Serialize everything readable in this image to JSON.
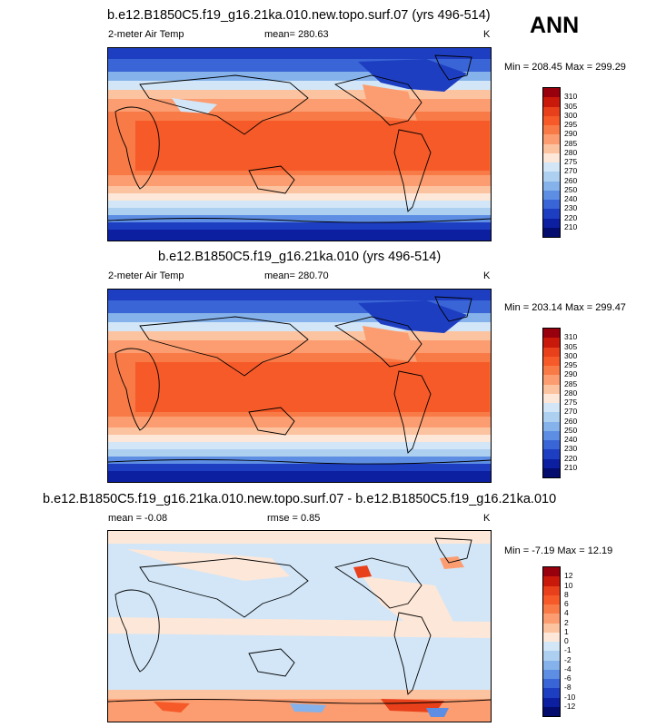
{
  "season": "ANN",
  "panels": [
    {
      "title": "b.e12.B1850C5.f19_g16.21ka.010.new.topo.surf.07 (yrs 496-514)",
      "left_label": "2-meter Air Temp",
      "center_label": "mean= 280.63",
      "units": "K",
      "stats": "Min = 208.45 Max = 299.29",
      "colorbar": {
        "labels": [
          "310",
          "305",
          "300",
          "295",
          "290",
          "285",
          "280",
          "275",
          "270",
          "260",
          "250",
          "240",
          "230",
          "220",
          "210"
        ],
        "colors": [
          "#99000d",
          "#c8190b",
          "#e8401a",
          "#f55a28",
          "#f87a47",
          "#fb9d70",
          "#fcc3a0",
          "#fde7d8",
          "#d2e6f7",
          "#aed0f0",
          "#85b2ea",
          "#5d8ee3",
          "#3a65d6",
          "#1e3ec2",
          "#0b1fa0",
          "#040d6e"
        ]
      }
    },
    {
      "title": "b.e12.B1850C5.f19_g16.21ka.010 (yrs 496-514)",
      "left_label": "2-meter Air Temp",
      "center_label": "mean= 280.70",
      "units": "K",
      "stats": "Min = 203.14 Max = 299.47",
      "colorbar": {
        "labels": [
          "310",
          "305",
          "300",
          "295",
          "290",
          "285",
          "280",
          "275",
          "270",
          "260",
          "250",
          "240",
          "230",
          "220",
          "210"
        ],
        "colors": [
          "#99000d",
          "#c8190b",
          "#e8401a",
          "#f55a28",
          "#f87a47",
          "#fb9d70",
          "#fcc3a0",
          "#fde7d8",
          "#d2e6f7",
          "#aed0f0",
          "#85b2ea",
          "#5d8ee3",
          "#3a65d6",
          "#1e3ec2",
          "#0b1fa0",
          "#040d6e"
        ]
      }
    },
    {
      "title": "b.e12.B1850C5.f19_g16.21ka.010.new.topo.surf.07 - b.e12.B1850C5.f19_g16.21ka.010",
      "left_label": "mean =  -0.08",
      "center_label": "rmse =   0.85",
      "units": "K",
      "stats": "Min =  -7.19 Max =  12.19",
      "colorbar": {
        "labels": [
          "12",
          "10",
          "8",
          "6",
          "4",
          "2",
          "1",
          "0",
          "-1",
          "-2",
          "-4",
          "-6",
          "-8",
          "-10",
          "-12"
        ],
        "colors": [
          "#99000d",
          "#c8190b",
          "#e8401a",
          "#f55a28",
          "#f87a47",
          "#fb9d70",
          "#fcc3a0",
          "#fde7d8",
          "#d2e6f7",
          "#aed0f0",
          "#85b2ea",
          "#5d8ee3",
          "#3a65d6",
          "#1e3ec2",
          "#0b1fa0",
          "#040d6e"
        ]
      }
    }
  ],
  "chart_data": [
    {
      "type": "heatmap",
      "title": "b.e12.B1850C5.f19_g16.21ka.010.new.topo.surf.07 (yrs 496-514)",
      "variable": "2-meter Air Temp",
      "units": "K",
      "mean": 280.63,
      "min": 208.45,
      "max": 299.29,
      "levels": [
        210,
        220,
        230,
        240,
        250,
        260,
        270,
        275,
        280,
        285,
        290,
        295,
        300,
        305,
        310
      ]
    },
    {
      "type": "heatmap",
      "title": "b.e12.B1850C5.f19_g16.21ka.010 (yrs 496-514)",
      "variable": "2-meter Air Temp",
      "units": "K",
      "mean": 280.7,
      "min": 203.14,
      "max": 299.47,
      "levels": [
        210,
        220,
        230,
        240,
        250,
        260,
        270,
        275,
        280,
        285,
        290,
        295,
        300,
        305,
        310
      ]
    },
    {
      "type": "heatmap",
      "title": "b.e12.B1850C5.f19_g16.21ka.010.new.topo.surf.07 - b.e12.B1850C5.f19_g16.21ka.010",
      "units": "K",
      "mean": -0.08,
      "rmse": 0.85,
      "min": -7.19,
      "max": 12.19,
      "levels": [
        -12,
        -10,
        -8,
        -6,
        -4,
        -2,
        -1,
        0,
        1,
        2,
        4,
        6,
        8,
        10,
        12
      ]
    }
  ]
}
